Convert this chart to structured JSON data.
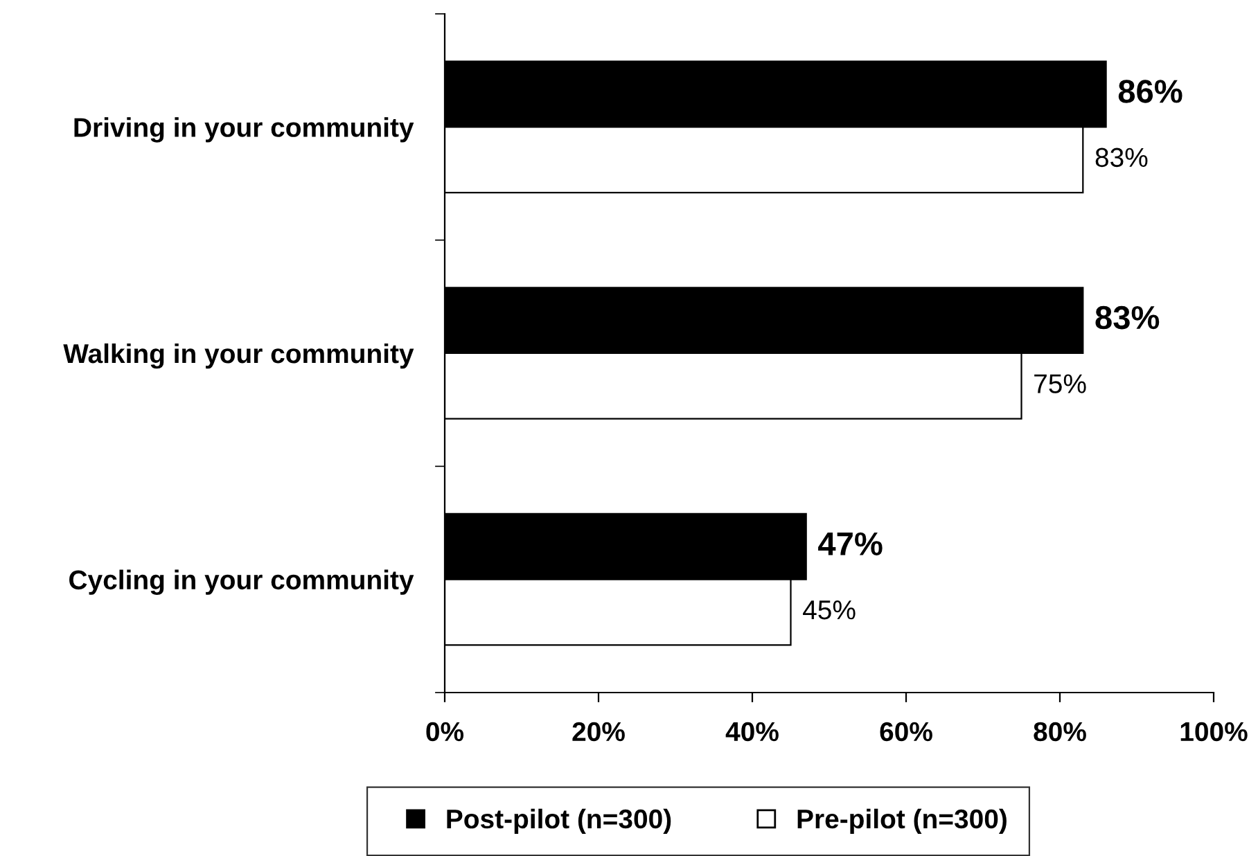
{
  "chart_data": {
    "type": "bar",
    "orientation": "horizontal",
    "categories": [
      "Driving in your community",
      "Walking in your community",
      "Cycling in your community"
    ],
    "series": [
      {
        "name": "Post-pilot (n=300)",
        "color": "#000000",
        "values": [
          86,
          83,
          47
        ],
        "value_labels": [
          "86%",
          "83%",
          "47%"
        ]
      },
      {
        "name": "Pre-pilot (n=300)",
        "color": "#ffffff",
        "values": [
          83,
          75,
          45
        ],
        "value_labels": [
          "83%",
          "75%",
          "45%"
        ]
      }
    ],
    "xlim": [
      0,
      100
    ],
    "xticks": [
      {
        "value": 0,
        "label": "0%"
      },
      {
        "value": 20,
        "label": "20%"
      },
      {
        "value": 40,
        "label": "40%"
      },
      {
        "value": 60,
        "label": "60%"
      },
      {
        "value": 80,
        "label": "80%"
      },
      {
        "value": 100,
        "label": "100%"
      }
    ],
    "grid": false,
    "legend": "bottom"
  }
}
